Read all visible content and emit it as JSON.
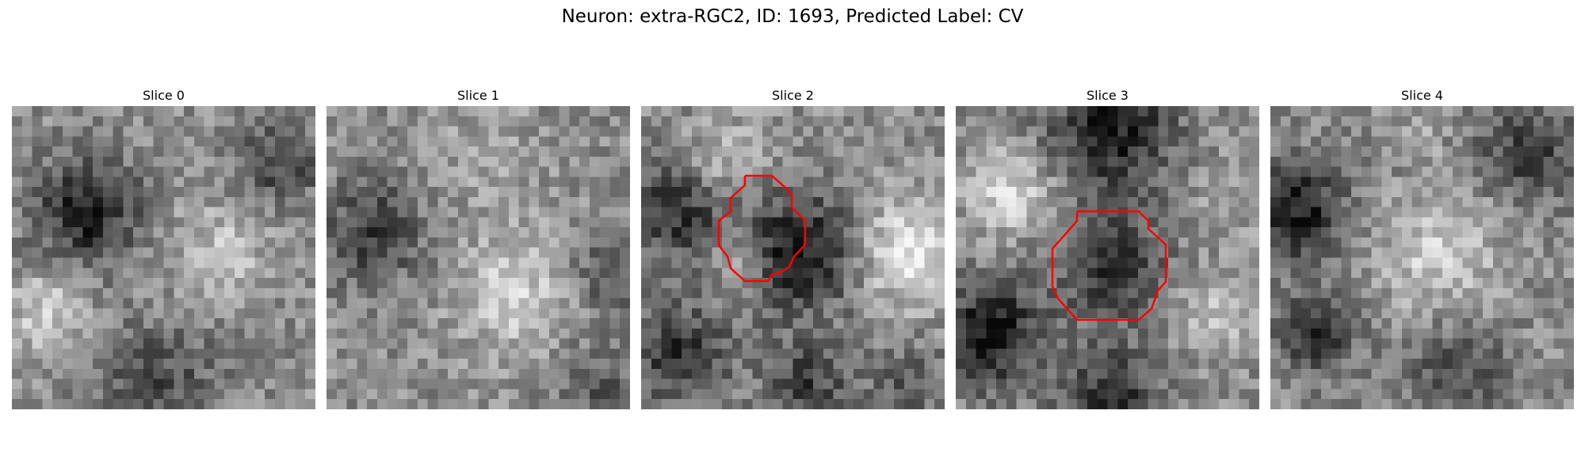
{
  "figure": {
    "title": "Neuron: extra-RGC2, ID: 1693, Predicted Label: CV"
  },
  "panels": [
    {
      "title": "Slice 0",
      "contour": false
    },
    {
      "title": "Slice 1",
      "contour": false
    },
    {
      "title": "Slice 2",
      "contour": true
    },
    {
      "title": "Slice 3",
      "contour": true
    },
    {
      "title": "Slice 4",
      "contour": false
    }
  ],
  "colors": {
    "contour": "#ff0000",
    "background": "#ffffff",
    "colormap": "gray"
  }
}
